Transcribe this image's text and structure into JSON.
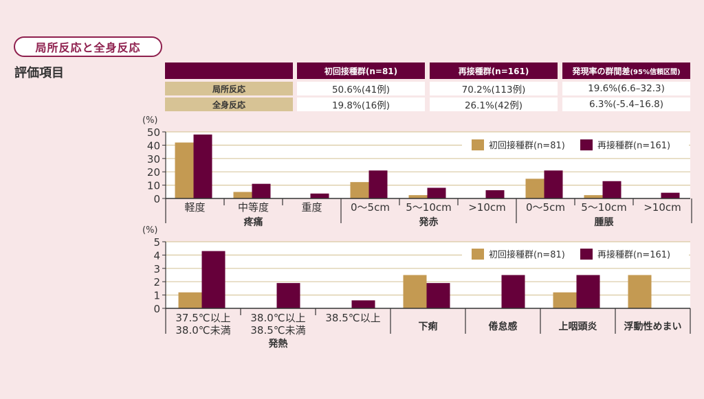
{
  "section_title": "局所反応と全身反応",
  "eval_title": "評価項目",
  "summary_table": {
    "headers": [
      "",
      "初回接種群(n=81)",
      "再接種群(n=161)",
      "発現率の群間差",
      "(95%信頼区間)"
    ],
    "rows": [
      {
        "label": "局所反応",
        "first": "50.6%(41例)",
        "re": "70.2%(113例)",
        "diff": "19.6%(6.6–32.3)"
      },
      {
        "label": "全身反応",
        "first": "19.8%(16例)",
        "re": "26.1%(42例)",
        "diff": "6.3%(-5.4–16.8)"
      }
    ]
  },
  "colors": {
    "first_group": "#c49a52",
    "re_group": "#66003a",
    "background": "#f8e7e8",
    "gridline": "#d9c9a0"
  },
  "chart_data": [
    {
      "type": "bar",
      "title": "",
      "ylabel": "(%)",
      "ylim": [
        0,
        50
      ],
      "yticks": [
        0,
        10,
        20,
        30,
        40,
        50
      ],
      "grid": true,
      "legend_position": "top-right",
      "categories": [
        "軽度",
        "中等度",
        "重度",
        "0〜5cm",
        "5〜10cm",
        ">10cm",
        "0〜5cm",
        "5〜10cm",
        ">10cm"
      ],
      "groups": [
        {
          "label": "疼痛",
          "span": [
            0,
            3
          ]
        },
        {
          "label": "発赤",
          "span": [
            3,
            6
          ]
        },
        {
          "label": "腫脹",
          "span": [
            6,
            9
          ]
        }
      ],
      "series": [
        {
          "name": "初回接種群(n=81)",
          "color": "#c49a52",
          "values": [
            42.0,
            4.9,
            0,
            12.3,
            2.5,
            0,
            14.8,
            2.5,
            0
          ]
        },
        {
          "name": "再接種群(n=161)",
          "color": "#66003a",
          "values": [
            48.0,
            11.0,
            3.7,
            21.0,
            8.0,
            6.2,
            21.0,
            13.0,
            4.3
          ]
        }
      ]
    },
    {
      "type": "bar",
      "title": "",
      "ylabel": "(%)",
      "ylim": [
        0,
        5
      ],
      "yticks": [
        0,
        1,
        2,
        3,
        4,
        5
      ],
      "grid": true,
      "legend_position": "top-right",
      "categories": [
        [
          "37.5℃以上",
          "38.0℃未満"
        ],
        [
          "38.0℃以上",
          "38.5℃未満"
        ],
        [
          "38.5℃以上"
        ],
        [
          "下痢"
        ],
        [
          "倦怠感"
        ],
        [
          "上咽頭炎"
        ],
        [
          "浮動性めまい"
        ]
      ],
      "groups": [
        {
          "label": "発熱",
          "span": [
            0,
            3
          ]
        }
      ],
      "series": [
        {
          "name": "初回接種群(n=81)",
          "color": "#c49a52",
          "values": [
            1.2,
            0,
            0,
            2.5,
            0,
            1.2,
            2.5
          ]
        },
        {
          "name": "再接種群(n=161)",
          "color": "#66003a",
          "values": [
            4.3,
            1.9,
            0.6,
            1.9,
            2.5,
            2.5,
            0
          ]
        }
      ]
    }
  ]
}
